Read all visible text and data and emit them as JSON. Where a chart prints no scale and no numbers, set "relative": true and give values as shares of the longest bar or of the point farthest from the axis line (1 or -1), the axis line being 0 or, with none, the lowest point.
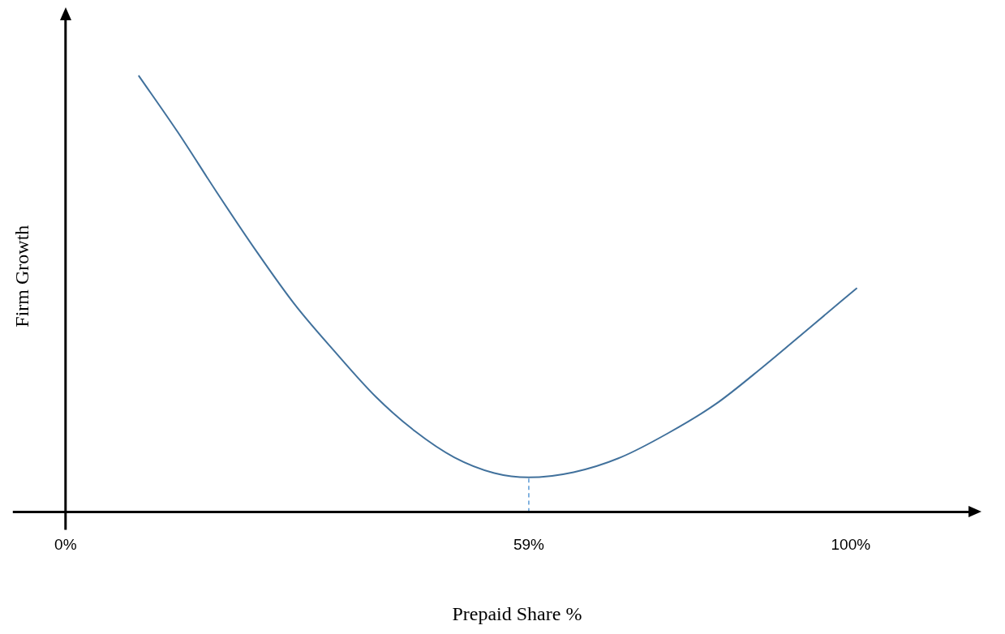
{
  "chart_data": {
    "type": "line",
    "relative": true,
    "xlabel": "Prepaid Share %",
    "ylabel": "Firm Growth",
    "xlim": [
      0,
      115
    ],
    "xticks": [
      {
        "value": 0,
        "label": "0%"
      },
      {
        "value": 59,
        "label": "59%"
      },
      {
        "value": 100,
        "label": "100%"
      }
    ],
    "grid": false,
    "legend": false,
    "marker": "none",
    "line_style": "solid",
    "series": [
      {
        "color": "#41719c",
        "x": [
          9.3,
          14.3,
          19.2,
          24.2,
          29.2,
          34.4,
          39.5,
          44.5,
          49.5,
          54.6,
          59,
          64.7,
          70.7,
          76.7,
          82.8,
          88.8,
          94.9,
          100.8
        ],
        "values": [
          1,
          0.87,
          0.734,
          0.6,
          0.475,
          0.365,
          0.264,
          0.185,
          0.125,
          0.089,
          0.079,
          0.091,
          0.125,
          0.18,
          0.247,
          0.332,
          0.424,
          0.513
        ]
      },
      {
        "type": "line",
        "color": "#5b9bd5",
        "line_style": "dashed",
        "x": [
          59,
          59
        ],
        "values": [
          0,
          0.079
        ]
      }
    ]
  }
}
